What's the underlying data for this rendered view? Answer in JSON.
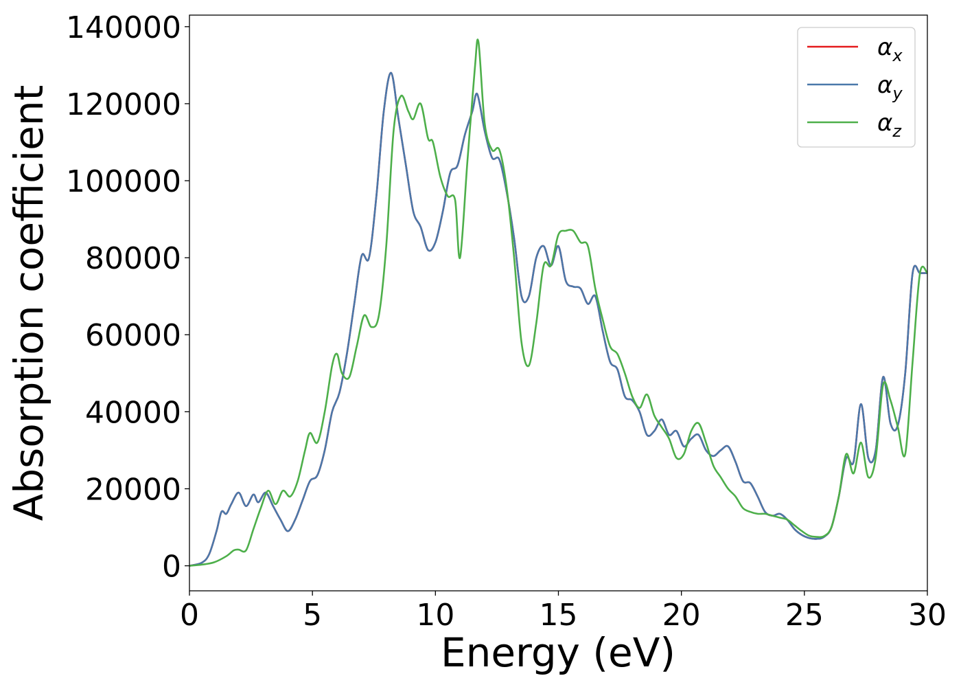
{
  "chart_data": {
    "type": "line",
    "xlabel": "Energy (eV)",
    "ylabel": "Absorption coefficient",
    "xlim": [
      0,
      30
    ],
    "ylim": [
      -6500,
      143000
    ],
    "xticks": [
      0,
      5,
      10,
      15,
      20,
      25,
      30
    ],
    "yticks": [
      0,
      20000,
      40000,
      60000,
      80000,
      100000,
      120000,
      140000
    ],
    "grid": false,
    "legend_position": "top-right",
    "series": [
      {
        "name": "αx",
        "legend_base": "α",
        "legend_sub": "x",
        "color": "#e41a1c",
        "x": [
          0,
          0.5,
          0.8,
          1.1,
          1.3,
          1.5,
          1.7,
          2.0,
          2.3,
          2.6,
          2.8,
          3.1,
          3.4,
          3.7,
          4.0,
          4.3,
          4.6,
          4.9,
          5.2,
          5.5,
          5.8,
          6.1,
          6.4,
          6.7,
          7.0,
          7.3,
          7.6,
          7.9,
          8.2,
          8.5,
          8.8,
          9.1,
          9.4,
          9.7,
          10.0,
          10.3,
          10.6,
          10.9,
          11.2,
          11.5,
          11.7,
          12.0,
          12.3,
          12.6,
          12.9,
          13.2,
          13.5,
          13.8,
          14.1,
          14.4,
          14.7,
          15.0,
          15.3,
          15.6,
          15.9,
          16.2,
          16.5,
          16.8,
          17.1,
          17.4,
          17.7,
          18.0,
          18.3,
          18.6,
          18.9,
          19.2,
          19.5,
          19.8,
          20.1,
          20.4,
          20.7,
          21.0,
          21.3,
          21.6,
          21.9,
          22.2,
          22.5,
          22.8,
          23.1,
          23.4,
          23.7,
          24.0,
          24.3,
          24.6,
          24.9,
          25.2,
          25.5,
          25.8,
          26.1,
          26.4,
          26.7,
          27.0,
          27.3,
          27.6,
          27.9,
          28.2,
          28.5,
          28.8,
          29.1,
          29.4,
          29.7,
          30.0
        ],
        "y": [
          0,
          800,
          3000,
          9000,
          14000,
          13500,
          16000,
          19000,
          15500,
          18500,
          16500,
          19000,
          15500,
          12000,
          9000,
          12000,
          17000,
          22000,
          23500,
          30000,
          40000,
          45000,
          55000,
          68000,
          80500,
          80000,
          96000,
          118000,
          128000,
          116000,
          104000,
          92000,
          88000,
          82000,
          84000,
          92000,
          102000,
          104000,
          112000,
          118000,
          122500,
          113000,
          106000,
          105500,
          97000,
          85000,
          70000,
          70000,
          80000,
          83000,
          78000,
          83000,
          74000,
          72500,
          72000,
          68000,
          70000,
          61000,
          53000,
          51000,
          44000,
          43000,
          40000,
          34000,
          35000,
          38000,
          34000,
          35000,
          31000,
          33000,
          34000,
          30000,
          28500,
          30000,
          31000,
          27000,
          22000,
          21500,
          18000,
          14000,
          13000,
          13500,
          12000,
          9500,
          8000,
          7200,
          7000,
          7500,
          10000,
          18000,
          28000,
          27000,
          42000,
          28000,
          30000,
          49000,
          37000,
          36500,
          50000,
          76000,
          76000,
          76000
        ]
      },
      {
        "name": "αy",
        "legend_base": "α",
        "legend_sub": "y",
        "color": "#4a78aa",
        "x": [
          0,
          0.5,
          0.8,
          1.1,
          1.3,
          1.5,
          1.7,
          2.0,
          2.3,
          2.6,
          2.8,
          3.1,
          3.4,
          3.7,
          4.0,
          4.3,
          4.6,
          4.9,
          5.2,
          5.5,
          5.8,
          6.1,
          6.4,
          6.7,
          7.0,
          7.3,
          7.6,
          7.9,
          8.2,
          8.5,
          8.8,
          9.1,
          9.4,
          9.7,
          10.0,
          10.3,
          10.6,
          10.9,
          11.2,
          11.5,
          11.7,
          12.0,
          12.3,
          12.6,
          12.9,
          13.2,
          13.5,
          13.8,
          14.1,
          14.4,
          14.7,
          15.0,
          15.3,
          15.6,
          15.9,
          16.2,
          16.5,
          16.8,
          17.1,
          17.4,
          17.7,
          18.0,
          18.3,
          18.6,
          18.9,
          19.2,
          19.5,
          19.8,
          20.1,
          20.4,
          20.7,
          21.0,
          21.3,
          21.6,
          21.9,
          22.2,
          22.5,
          22.8,
          23.1,
          23.4,
          23.7,
          24.0,
          24.3,
          24.6,
          24.9,
          25.2,
          25.5,
          25.8,
          26.1,
          26.4,
          26.7,
          27.0,
          27.3,
          27.6,
          27.9,
          28.2,
          28.5,
          28.8,
          29.1,
          29.4,
          29.7,
          30.0
        ],
        "y": [
          0,
          800,
          3000,
          9000,
          14000,
          13500,
          16000,
          19000,
          15500,
          18500,
          16500,
          19000,
          15500,
          12000,
          9000,
          12000,
          17000,
          22000,
          23500,
          30000,
          40000,
          45000,
          55000,
          68000,
          80500,
          80000,
          96000,
          118000,
          128000,
          116000,
          104000,
          92000,
          88000,
          82000,
          84000,
          92000,
          102000,
          104000,
          112000,
          118000,
          122500,
          113000,
          106000,
          105500,
          97000,
          85000,
          70000,
          70000,
          80000,
          83000,
          78000,
          83000,
          74000,
          72500,
          72000,
          68000,
          70000,
          61000,
          53000,
          51000,
          44000,
          43000,
          40000,
          34000,
          35000,
          38000,
          34000,
          35000,
          31000,
          33000,
          34000,
          30000,
          28500,
          30000,
          31000,
          27000,
          22000,
          21500,
          18000,
          14000,
          13000,
          13500,
          12000,
          9500,
          8000,
          7200,
          7000,
          7500,
          10000,
          18000,
          28000,
          27000,
          42000,
          28000,
          30000,
          49000,
          37000,
          36500,
          50000,
          76000,
          76000,
          76000
        ]
      },
      {
        "name": "αz",
        "legend_base": "α",
        "legend_sub": "z",
        "color": "#4daf4a",
        "x": [
          0,
          0.5,
          1.0,
          1.5,
          1.8,
          2.0,
          2.3,
          2.6,
          2.9,
          3.2,
          3.5,
          3.8,
          4.1,
          4.4,
          4.7,
          4.9,
          5.2,
          5.5,
          5.8,
          6.0,
          6.2,
          6.5,
          6.8,
          7.1,
          7.4,
          7.7,
          8.0,
          8.3,
          8.6,
          8.9,
          9.1,
          9.4,
          9.7,
          9.9,
          10.2,
          10.5,
          10.8,
          11.0,
          11.3,
          11.6,
          11.75,
          12.0,
          12.3,
          12.6,
          12.9,
          13.2,
          13.5,
          13.8,
          14.1,
          14.4,
          14.7,
          15.0,
          15.3,
          15.6,
          15.9,
          16.2,
          16.5,
          16.8,
          17.1,
          17.4,
          17.7,
          18.0,
          18.3,
          18.6,
          18.9,
          19.2,
          19.5,
          19.8,
          20.1,
          20.4,
          20.7,
          21.0,
          21.3,
          21.6,
          21.9,
          22.2,
          22.5,
          22.8,
          23.1,
          23.4,
          23.7,
          24.0,
          24.3,
          24.6,
          24.9,
          25.2,
          25.5,
          25.8,
          26.1,
          26.4,
          26.7,
          27.0,
          27.3,
          27.6,
          27.9,
          28.2,
          28.5,
          28.8,
          29.1,
          29.4,
          29.7,
          30.0
        ],
        "y": [
          0,
          300,
          900,
          2500,
          4000,
          4200,
          4000,
          9500,
          15000,
          19500,
          16000,
          19500,
          18000,
          22000,
          30000,
          34500,
          32000,
          40000,
          52000,
          55000,
          50000,
          49000,
          57000,
          65000,
          62000,
          65000,
          83000,
          113000,
          122000,
          118000,
          116000,
          120000,
          111000,
          110000,
          101000,
          96000,
          95000,
          80000,
          105000,
          129000,
          136000,
          115000,
          108000,
          108000,
          98000,
          80000,
          58000,
          52000,
          63000,
          78000,
          78000,
          86000,
          87000,
          87000,
          84000,
          83000,
          72000,
          64000,
          57000,
          55000,
          50000,
          44000,
          41000,
          44500,
          39000,
          36000,
          33000,
          28000,
          29000,
          35000,
          37000,
          32000,
          26000,
          23000,
          20000,
          18000,
          15000,
          14000,
          13500,
          13500,
          13000,
          12500,
          12000,
          10500,
          9000,
          7800,
          7500,
          7700,
          10000,
          18000,
          29000,
          24000,
          32000,
          23000,
          28000,
          47000,
          43000,
          36000,
          29000,
          53000,
          76000,
          76000
        ]
      }
    ]
  }
}
